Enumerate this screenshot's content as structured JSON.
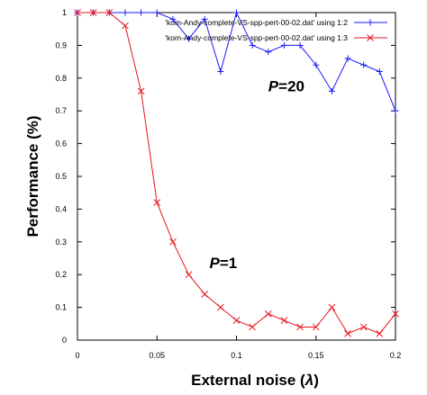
{
  "chart_data": {
    "type": "line",
    "xlabel": "External noise (",
    "xlabel_symbol": "λ",
    "xlabel_close": ")",
    "ylabel": "Performance (%)",
    "xlim": [
      0,
      0.2
    ],
    "ylim": [
      0,
      1
    ],
    "x_ticks": [
      "0",
      "0.05",
      "0.1",
      "0.15",
      "0.2"
    ],
    "x_tick_values": [
      0,
      0.05,
      0.1,
      0.15,
      0.2
    ],
    "y_ticks": [
      "0",
      "0.1",
      "0.2",
      "0.3",
      "0.4",
      "0.5",
      "0.6",
      "0.7",
      "0.8",
      "0.9",
      "1"
    ],
    "y_tick_values": [
      0,
      0.1,
      0.2,
      0.3,
      0.4,
      0.5,
      0.6,
      0.7,
      0.8,
      0.9,
      1
    ],
    "grid": false,
    "legend_position": "top-right",
    "series": [
      {
        "name": "'kom-Andy-complete-VS-spp-pert-00-02.dat' using 1:2",
        "color": "#1a1aff",
        "marker": "plus",
        "x": [
          0,
          0.01,
          0.02,
          0.03,
          0.04,
          0.05,
          0.06,
          0.07,
          0.08,
          0.09,
          0.1,
          0.11,
          0.12,
          0.13,
          0.14,
          0.15,
          0.16,
          0.17,
          0.18,
          0.19,
          0.2
        ],
        "y": [
          1,
          1,
          1,
          1,
          1,
          1,
          0.98,
          0.92,
          0.98,
          0.82,
          1,
          0.9,
          0.88,
          0.9,
          0.9,
          0.84,
          0.76,
          0.86,
          0.84,
          0.82,
          0.7
        ]
      },
      {
        "name": "'kom-Andy-complete-VS-spp-pert-00-02.dat' using 1:3",
        "color": "#e8141e",
        "marker": "cross",
        "x": [
          0,
          0.01,
          0.02,
          0.03,
          0.04,
          0.05,
          0.06,
          0.07,
          0.08,
          0.09,
          0.1,
          0.11,
          0.12,
          0.13,
          0.14,
          0.15,
          0.16,
          0.17,
          0.18,
          0.19,
          0.2
        ],
        "y": [
          1,
          1,
          1,
          0.96,
          0.76,
          0.42,
          0.3,
          0.2,
          0.14,
          0.1,
          0.06,
          0.04,
          0.08,
          0.06,
          0.04,
          0.04,
          0.1,
          0.02,
          0.04,
          0.02,
          0.08
        ]
      }
    ],
    "annotations": [
      {
        "italic": "P",
        "text": "=20",
        "x": 0.12,
        "y": 0.76
      },
      {
        "italic": "P",
        "text": "=1",
        "x": 0.083,
        "y": 0.22
      }
    ]
  }
}
